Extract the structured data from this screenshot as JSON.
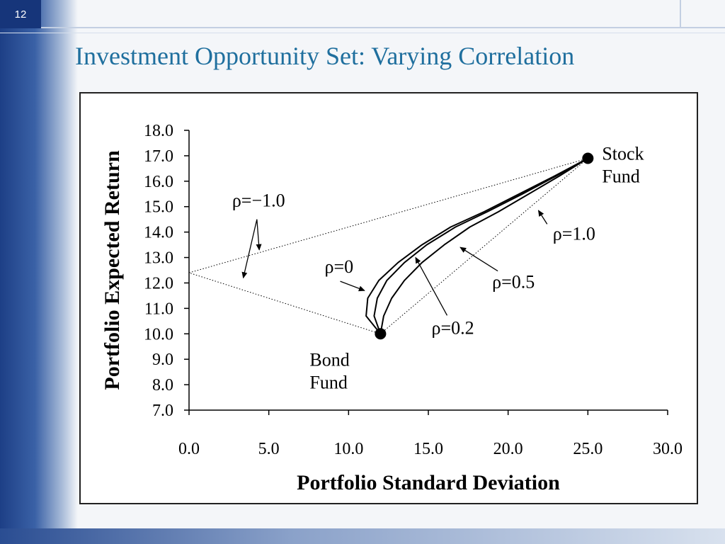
{
  "slide": {
    "number": "12",
    "title": "Investment Opportunity Set: Varying Correlation"
  },
  "chart_data": {
    "type": "line",
    "xlabel": "Portfolio Standard Deviation",
    "ylabel": "Portfolio Expected Return",
    "xlim": [
      0,
      30
    ],
    "ylim": [
      7,
      18
    ],
    "x_ticks": [
      "0.0",
      "5.0",
      "10.0",
      "15.0",
      "20.0",
      "25.0",
      "30.0"
    ],
    "y_ticks": [
      "7.0",
      "8.0",
      "9.0",
      "10.0",
      "11.0",
      "12.0",
      "13.0",
      "14.0",
      "15.0",
      "16.0",
      "17.0",
      "18.0"
    ],
    "points": [
      {
        "name_lines": [
          "Bond",
          "Fund"
        ],
        "x": 12,
        "y": 10
      },
      {
        "name_lines": [
          "Stock",
          "Fund"
        ],
        "x": 25,
        "y": 16.9
      }
    ],
    "series": [
      {
        "name": "ρ=1.0",
        "style": "dotted",
        "x": [
          12,
          25
        ],
        "y": [
          10,
          16.9
        ]
      },
      {
        "name": "ρ=−1.0",
        "style": "dotted",
        "x": [
          12,
          0,
          25
        ],
        "y": [
          10,
          12.4,
          16.9
        ]
      },
      {
        "name": "ρ=0.5",
        "style": "solid",
        "x": [
          12,
          12.2,
          12.7,
          13.5,
          14.6,
          16.0,
          17.6,
          19.4,
          21.3,
          23.2,
          25
        ],
        "y": [
          10,
          10.7,
          11.4,
          12.1,
          12.8,
          13.5,
          14.2,
          14.8,
          15.5,
          16.2,
          16.9
        ]
      },
      {
        "name": "ρ=0.2",
        "style": "solid",
        "x": [
          12,
          11.6,
          11.8,
          12.4,
          13.5,
          14.9,
          16.7,
          18.7,
          20.9,
          23.0,
          25
        ],
        "y": [
          10,
          10.7,
          11.4,
          12.1,
          12.8,
          13.5,
          14.2,
          14.8,
          15.5,
          16.2,
          16.9
        ]
      },
      {
        "name": "ρ=0",
        "style": "solid",
        "x": [
          12,
          11.1,
          11.2,
          11.9,
          13.1,
          14.6,
          16.4,
          18.5,
          20.7,
          22.9,
          25
        ],
        "y": [
          10,
          10.7,
          11.4,
          12.1,
          12.8,
          13.5,
          14.2,
          14.8,
          15.5,
          16.2,
          16.9
        ]
      }
    ],
    "annotations": [
      {
        "text": "ρ=−1.0",
        "x": 2.7,
        "y": 15.0,
        "arrows_to": [
          [
            4.4,
            13.3
          ],
          [
            3.4,
            12.2
          ]
        ]
      },
      {
        "text": "ρ=1.0",
        "x": 22.8,
        "y": 13.7,
        "arrows_to": [
          [
            21.9,
            14.85
          ]
        ]
      },
      {
        "text": "ρ=0.5",
        "x": 19.0,
        "y": 11.8,
        "arrows_to": [
          [
            17.0,
            13.4
          ]
        ]
      },
      {
        "text": "ρ=0.2",
        "x": 15.2,
        "y": 10.0,
        "arrows_to": [
          [
            14.2,
            13.0
          ]
        ]
      },
      {
        "text": "ρ=0",
        "x": 8.5,
        "y": 12.4,
        "arrows_to": [
          [
            11.0,
            11.7
          ]
        ]
      }
    ]
  }
}
